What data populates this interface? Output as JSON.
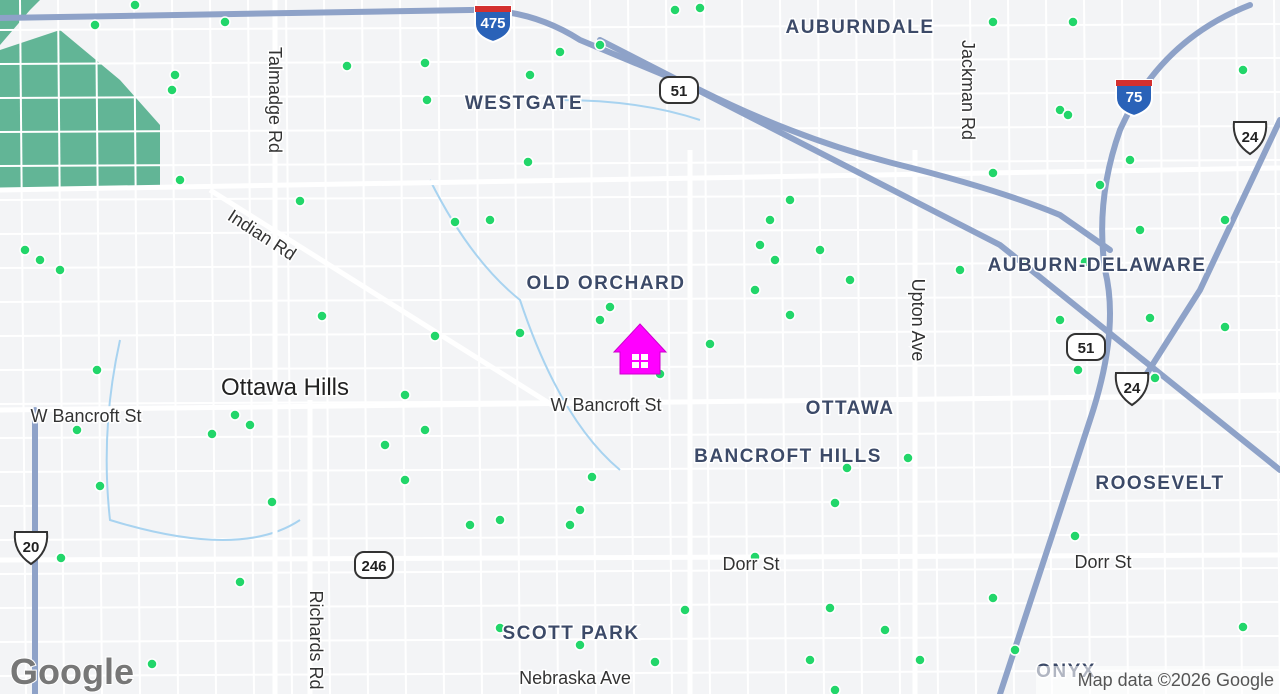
{
  "map": {
    "neighborhoods": [
      "AUBURNDALE",
      "WESTGATE",
      "OLD ORCHARD",
      "AUBURN-DELAWARE",
      "OTTAWA",
      "BANCROFT HILLS",
      "ROOSEVELT",
      "SCOTT PARK",
      "ONYX"
    ],
    "places": [
      "Ottawa Hills"
    ],
    "streets": [
      "Talmadge Rd",
      "Jackman Rd",
      "Indian Rd",
      "Upton Ave",
      "W Bancroft St",
      "W Bancroft St",
      "Dorr St",
      "Dorr St",
      "Richards Rd",
      "Nebraska Ave"
    ],
    "route_shields": [
      "475",
      "51",
      "75",
      "24",
      "51",
      "24",
      "20",
      "246"
    ],
    "logo": "Google",
    "attribution": "Map data ©2026 Google"
  }
}
